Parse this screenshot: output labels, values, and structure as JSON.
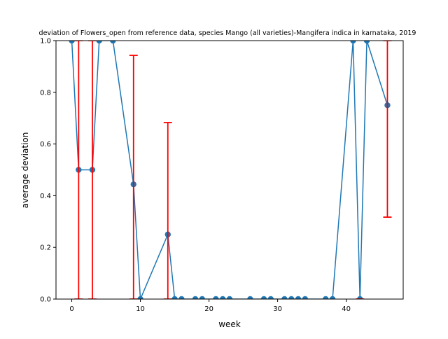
{
  "chart_data": {
    "type": "line",
    "title": "deviation of Flowers_open from reference data, species Mango (all varieties)-Mangifera indica in karnataka, 2019",
    "xlabel": "week",
    "ylabel": "average deviation",
    "xlim": [
      -2.3,
      48.3
    ],
    "ylim": [
      0,
      1
    ],
    "xticks": [
      0,
      10,
      20,
      30,
      40
    ],
    "yticks": [
      0.0,
      0.2,
      0.4,
      0.6,
      0.8,
      1.0
    ],
    "xtick_labels": [
      "0",
      "10",
      "20",
      "30",
      "40"
    ],
    "ytick_labels": [
      "0.0",
      "0.2",
      "0.4",
      "0.6",
      "0.8",
      "1.0"
    ],
    "grid": false,
    "legend": "none",
    "series": [
      {
        "color": "#1f77b4",
        "x": [
          0,
          1,
          3,
          4,
          6,
          9,
          10,
          14,
          15,
          16,
          18,
          19,
          21,
          22,
          23,
          26,
          28,
          29,
          31,
          32,
          33,
          34,
          37,
          38,
          41,
          42,
          43,
          46
        ],
        "y": [
          1.0,
          0.5,
          0.5,
          1.0,
          1.0,
          0.444,
          0.0,
          0.25,
          0.0,
          0.0,
          0.0,
          0.0,
          0.0,
          0.0,
          0.0,
          0.0,
          0.0,
          0.0,
          0.0,
          0.0,
          0.0,
          0.0,
          0.0,
          0.0,
          1.0,
          0.0,
          1.0,
          0.75
        ]
      }
    ],
    "error_bars": {
      "color": "#ff0000",
      "items": [
        {
          "x": 1,
          "low": 0.0,
          "high": 1.0
        },
        {
          "x": 3,
          "low": 0.0,
          "high": 1.0
        },
        {
          "x": 9,
          "low": 0.0,
          "high": 0.943
        },
        {
          "x": 14,
          "low": 0.0,
          "high": 0.683
        },
        {
          "x": 42,
          "low": 0.0,
          "high": 0.0
        },
        {
          "x": 46,
          "low": 0.317,
          "high": 1.0
        }
      ]
    }
  }
}
